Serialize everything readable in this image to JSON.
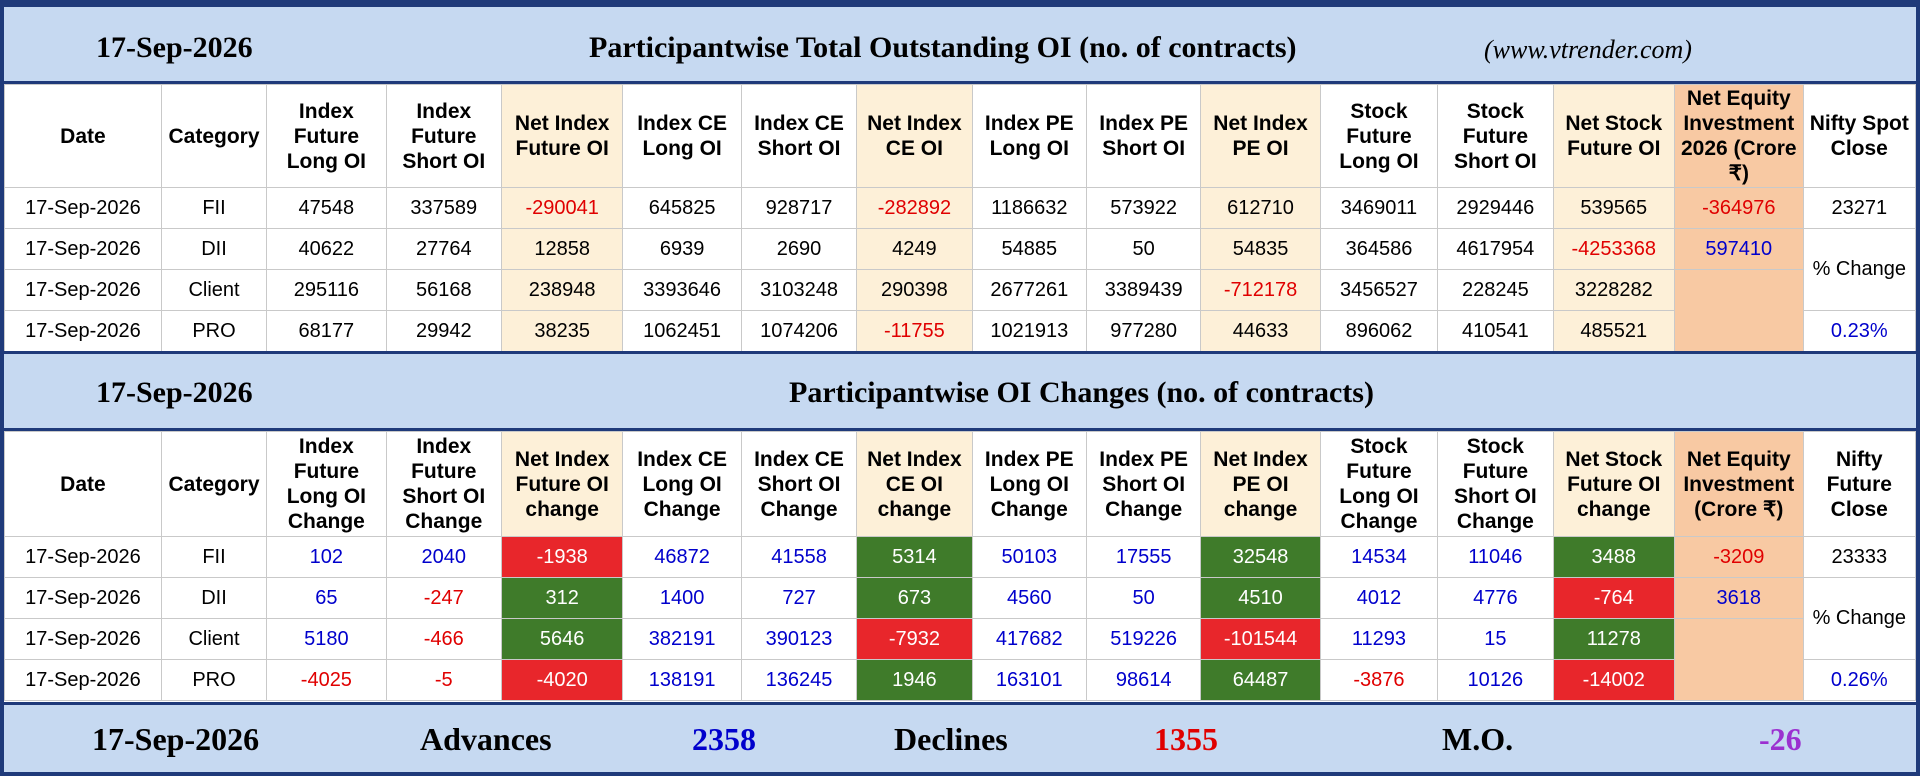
{
  "section1": {
    "date": "17-Sep-2026",
    "title": "Participantwise Total Outstanding OI (no. of contracts)",
    "site": "(www.vtrender.com)",
    "headers": [
      "Date",
      "Category",
      "Index Future Long OI",
      "Index Future Short OI",
      "Net Index Future OI",
      "Index CE Long OI",
      "Index CE Short OI",
      "Net Index CE OI",
      "Index PE Long OI",
      "Index PE Short OI",
      "Net Index PE OI",
      "Stock Future Long OI",
      "Stock Future Short OI",
      "Net Stock Future OI",
      "Net Equity Investment 2026 (Crore ₹)",
      "Nifty Spot Close"
    ],
    "rows": [
      {
        "date": "17-Sep-2026",
        "cat": "FII",
        "v": [
          "47548",
          "337589",
          "-290041",
          "645825",
          "928717",
          "-282892",
          "1186632",
          "573922",
          "612710",
          "3469011",
          "2929446",
          "539565",
          "-364976"
        ]
      },
      {
        "date": "17-Sep-2026",
        "cat": "DII",
        "v": [
          "40622",
          "27764",
          "12858",
          "6939",
          "2690",
          "4249",
          "54885",
          "50",
          "54835",
          "364586",
          "4617954",
          "-4253368",
          "597410"
        ]
      },
      {
        "date": "17-Sep-2026",
        "cat": "Client",
        "v": [
          "295116",
          "56168",
          "238948",
          "3393646",
          "3103248",
          "290398",
          "2677261",
          "3389439",
          "-712178",
          "3456527",
          "228245",
          "3228282",
          ""
        ]
      },
      {
        "date": "17-Sep-2026",
        "cat": "PRO",
        "v": [
          "68177",
          "29942",
          "38235",
          "1062451",
          "1074206",
          "-11755",
          "1021913",
          "977280",
          "44633",
          "896062",
          "410541",
          "485521",
          ""
        ]
      }
    ],
    "nifty_value": "23271",
    "change_label": "% Change",
    "change_value": "0.23%"
  },
  "section2": {
    "date": "17-Sep-2026",
    "title": "Participantwise OI Changes (no. of contracts)",
    "headers": [
      "Date",
      "Category",
      "Index Future Long OI Change",
      "Index Future Short OI Change",
      "Net Index Future OI change",
      "Index CE Long OI Change",
      "Index CE Short OI Change",
      "Net Index CE OI change",
      "Index PE Long OI Change",
      "Index PE Short OI Change",
      "Net Index PE OI change",
      "Stock Future Long OI Change",
      "Stock Future Short OI Change",
      "Net Stock Future OI change",
      "Net Equity Investment (Crore ₹)",
      "Nifty Future Close"
    ],
    "rows": [
      {
        "date": "17-Sep-2026",
        "cat": "FII",
        "v": [
          "102",
          "2040",
          "-1938",
          "46872",
          "41558",
          "5314",
          "50103",
          "17555",
          "32548",
          "14534",
          "11046",
          "3488",
          "-3209"
        ]
      },
      {
        "date": "17-Sep-2026",
        "cat": "DII",
        "v": [
          "65",
          "-247",
          "312",
          "1400",
          "727",
          "673",
          "4560",
          "50",
          "4510",
          "4012",
          "4776",
          "-764",
          "3618"
        ]
      },
      {
        "date": "17-Sep-2026",
        "cat": "Client",
        "v": [
          "5180",
          "-466",
          "5646",
          "382191",
          "390123",
          "-7932",
          "417682",
          "519226",
          "-101544",
          "11293",
          "15",
          "11278",
          ""
        ]
      },
      {
        "date": "17-Sep-2026",
        "cat": "PRO",
        "v": [
          "-4025",
          "-5",
          "-4020",
          "138191",
          "136245",
          "1946",
          "163101",
          "98614",
          "64487",
          "-3876",
          "10126",
          "-14002",
          ""
        ]
      }
    ],
    "nifty_value": "23333",
    "change_label": "% Change",
    "change_value": "0.26%"
  },
  "summary": {
    "date": "17-Sep-2026",
    "advances_label": "Advances",
    "advances": "2358",
    "declines_label": "Declines",
    "declines": "1355",
    "mo_label": "M.O.",
    "mo": "-26"
  },
  "colors": {
    "band": "#c6d9f1",
    "border": "#1f3a7a",
    "net_col": "#fdf0d8",
    "equity_col": "#f8c9a3",
    "negative": "#e00000",
    "positive_blue": "#0000cc",
    "red_cell": "#e8262b",
    "green_cell": "#3f7b2a",
    "mo": "#9b30d0"
  }
}
